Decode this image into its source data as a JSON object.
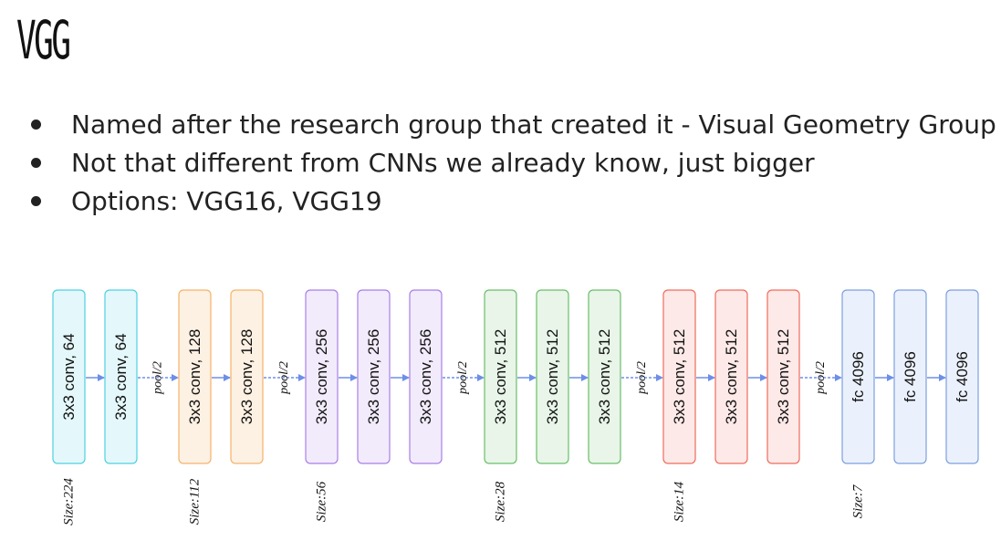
{
  "title": "VGG",
  "bullets": [
    "Named after the research group that created it - Visual Geometry Group",
    "Not that different from CNNs we already know, just bigger",
    "Options: VGG16, VGG19"
  ],
  "diagram": {
    "blocks": [
      {
        "label": "3x3 conv, 64",
        "stroke": "#4dd0e1",
        "fill": "#e4f8fb"
      },
      {
        "label": "3x3 conv, 64",
        "stroke": "#4dd0e1",
        "fill": "#e4f8fb"
      },
      {
        "label": "3x3 conv, 128",
        "stroke": "#f6b26b",
        "fill": "#fdf1e3"
      },
      {
        "label": "3x3 conv, 128",
        "stroke": "#f6b26b",
        "fill": "#fdf1e3"
      },
      {
        "label": "3x3 conv, 256",
        "stroke": "#a97ee8",
        "fill": "#f2ebfc"
      },
      {
        "label": "3x3 conv, 256",
        "stroke": "#a97ee8",
        "fill": "#f2ebfc"
      },
      {
        "label": "3x3 conv, 256",
        "stroke": "#a97ee8",
        "fill": "#f2ebfc"
      },
      {
        "label": "3x3 conv, 512",
        "stroke": "#6abf69",
        "fill": "#e8f5e8"
      },
      {
        "label": "3x3 conv, 512",
        "stroke": "#6abf69",
        "fill": "#e8f5e8"
      },
      {
        "label": "3x3 conv, 512",
        "stroke": "#6abf69",
        "fill": "#e8f5e8"
      },
      {
        "label": "3x3 conv, 512",
        "stroke": "#ef6c5c",
        "fill": "#fde9e7"
      },
      {
        "label": "3x3 conv, 512",
        "stroke": "#ef6c5c",
        "fill": "#fde9e7"
      },
      {
        "label": "3x3 conv, 512",
        "stroke": "#ef6c5c",
        "fill": "#fde9e7"
      },
      {
        "label": "fc 4096",
        "stroke": "#7b9fe0",
        "fill": "#ebf1fc"
      },
      {
        "label": "fc 4096",
        "stroke": "#7b9fe0",
        "fill": "#ebf1fc"
      },
      {
        "label": "fc 4096",
        "stroke": "#7b9fe0",
        "fill": "#ebf1fc"
      }
    ],
    "pool_label": "pool/2",
    "pool_after": [
      1,
      3,
      6,
      9,
      12
    ],
    "sizes": [
      {
        "label": "Size:224",
        "block": 0
      },
      {
        "label": "Size:112",
        "block": 2
      },
      {
        "label": "Size:56",
        "block": 4
      },
      {
        "label": "Size:28",
        "block": 7
      },
      {
        "label": "Size:14",
        "block": 10
      },
      {
        "label": "Size:7",
        "block": 13
      }
    ],
    "arrow_color": "#6d8fe8"
  }
}
